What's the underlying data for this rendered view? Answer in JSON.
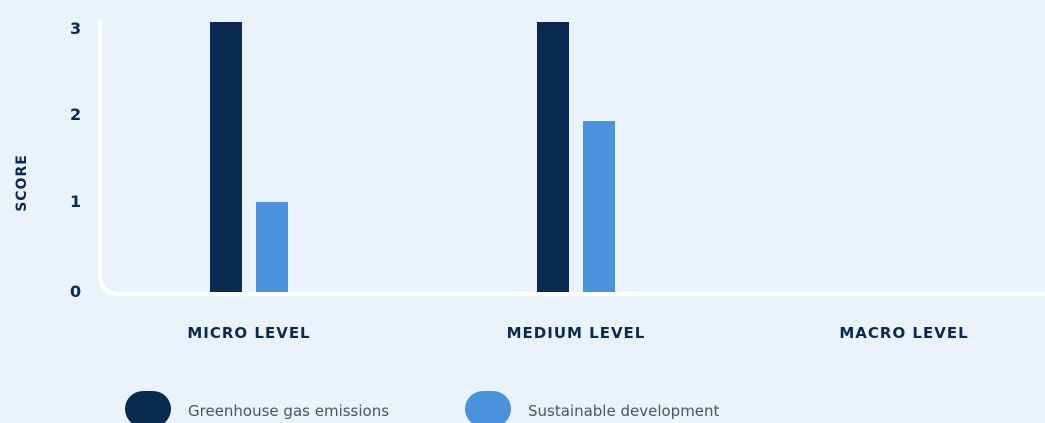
{
  "chart_data": {
    "type": "bar",
    "ylabel": "SCORE",
    "xlabel": "",
    "ylim": [
      0,
      3
    ],
    "yticks": [
      "0",
      "1",
      "2",
      "3"
    ],
    "categories": [
      "MICRO LEVEL",
      "MEDIUM LEVEL",
      "MACRO LEVEL"
    ],
    "series": [
      {
        "name": "Greenhouse gas emissions",
        "color": "#0b2a50",
        "values": [
          3,
          3,
          0
        ]
      },
      {
        "name": "Sustainable development",
        "color": "#4a93dc",
        "values": [
          1,
          1.9,
          0
        ]
      }
    ],
    "grid": false,
    "legend_position": "bottom-left"
  },
  "colors": {
    "background": "#eaf2fb",
    "axis": "#ffffff",
    "text": "#0b2a50"
  }
}
